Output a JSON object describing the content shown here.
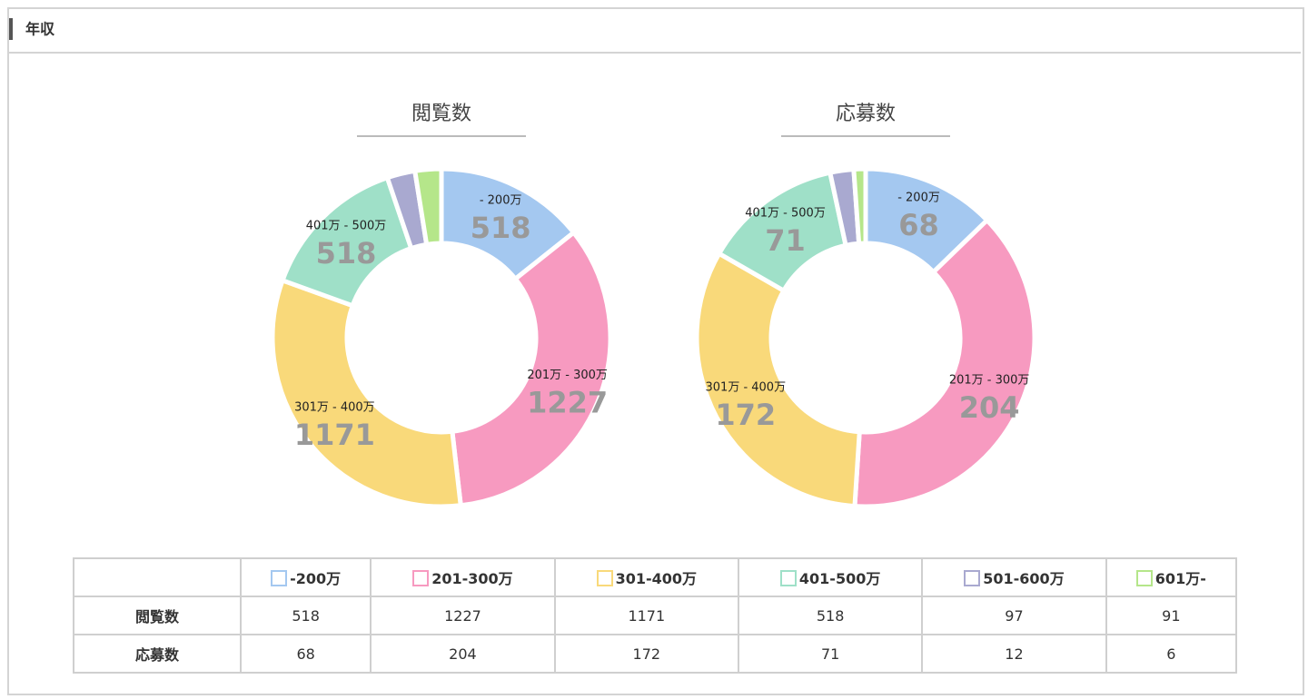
{
  "header": {
    "title": "年収"
  },
  "chart_data": [
    {
      "type": "donut",
      "title": "閲覧数",
      "categories": [
        "- 200万",
        "201万 - 300万",
        "301万 - 400万",
        "401万 - 500万",
        null,
        null
      ],
      "values": [
        518,
        1227,
        1171,
        518,
        97,
        91
      ],
      "colors": [
        "#a4c8f0",
        "#f79ac0",
        "#f9d97a",
        "#9fe0c8",
        "#a9a9d0",
        "#b5e68a"
      ]
    },
    {
      "type": "donut",
      "title": "応募数",
      "categories": [
        "- 200万",
        "201万 - 300万",
        "301万 - 400万",
        "401万 - 500万",
        null,
        null
      ],
      "values": [
        68,
        204,
        172,
        71,
        12,
        6
      ],
      "colors": [
        "#a4c8f0",
        "#f79ac0",
        "#f9d97a",
        "#9fe0c8",
        "#a9a9d0",
        "#b5e68a"
      ]
    }
  ],
  "table": {
    "columns": [
      "-200万",
      "201-300万",
      "301-400万",
      "401-500万",
      "501-600万",
      "601万-"
    ]
  }
}
